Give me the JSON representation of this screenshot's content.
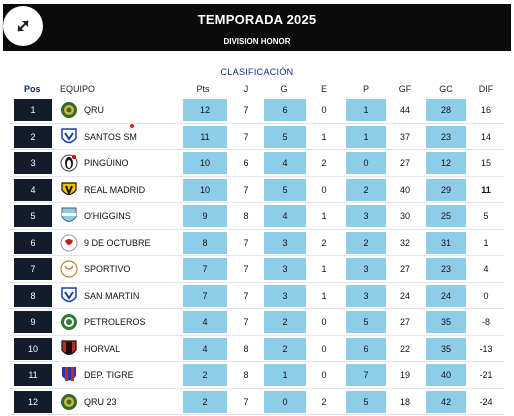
{
  "header": {
    "title": "TEMPORADA 2025",
    "subtitle": "DIVISION HONOR"
  },
  "section_title": "CLASIFICACIÓN",
  "columns": {
    "pos": "Pos",
    "team": "EQUIPO",
    "pts": "Pts",
    "j": "J",
    "g": "G",
    "e": "E",
    "p": "P",
    "gf": "GF",
    "gc": "GC",
    "dif": "DIF"
  },
  "colors": {
    "header_bg": "#0b0b0b",
    "pos_bg": "#121c2c",
    "highlight": "#8ecde8",
    "accent_text": "#1a2a8a"
  },
  "rows": [
    {
      "pos": "1",
      "team": "QRU",
      "logo": "green-gold-crest-icon",
      "pts": "12",
      "j": "7",
      "g": "6",
      "e": "0",
      "p": "1",
      "gf": "44",
      "gc": "28",
      "dif": "16",
      "dif_bold": false
    },
    {
      "pos": "2",
      "team": "SANTOS SM",
      "logo": "blue-white-shield-icon",
      "pts": "11",
      "j": "7",
      "g": "5",
      "e": "1",
      "p": "1",
      "gf": "37",
      "gc": "23",
      "dif": "14",
      "dif_bold": false
    },
    {
      "pos": "3",
      "team": "PINGÜINO",
      "logo": "penguin-crest-icon",
      "pts": "10",
      "j": "6",
      "g": "4",
      "e": "2",
      "p": "0",
      "gf": "27",
      "gc": "12",
      "dif": "15",
      "dif_bold": false
    },
    {
      "pos": "4",
      "team": "REAL MADRID",
      "logo": "yellow-black-crest-icon",
      "pts": "10",
      "j": "7",
      "g": "5",
      "e": "0",
      "p": "2",
      "gf": "40",
      "gc": "29",
      "dif": "11",
      "dif_bold": true
    },
    {
      "pos": "5",
      "team": "O'HIGGINS",
      "logo": "celeste-stripes-shield-icon",
      "pts": "9",
      "j": "8",
      "g": "4",
      "e": "1",
      "p": "3",
      "gf": "30",
      "gc": "25",
      "dif": "5",
      "dif_bold": false
    },
    {
      "pos": "6",
      "team": "9 DE OCTUBRE",
      "logo": "white-red-crest-icon",
      "pts": "8",
      "j": "7",
      "g": "3",
      "e": "2",
      "p": "2",
      "gf": "32",
      "gc": "31",
      "dif": "1",
      "dif_bold": false
    },
    {
      "pos": "7",
      "team": "SPORTIVO",
      "logo": "sportivo-crest-icon",
      "pts": "7",
      "j": "7",
      "g": "3",
      "e": "1",
      "p": "3",
      "gf": "27",
      "gc": "23",
      "dif": "4",
      "dif_bold": false
    },
    {
      "pos": "8",
      "team": "SAN MARTIN",
      "logo": "blue-white-shield-icon",
      "pts": "7",
      "j": "7",
      "g": "3",
      "e": "1",
      "p": "3",
      "gf": "24",
      "gc": "24",
      "dif": "0",
      "dif_bold": false
    },
    {
      "pos": "9",
      "team": "PETROLEROS",
      "logo": "green-round-crest-icon",
      "pts": "4",
      "j": "7",
      "g": "2",
      "e": "0",
      "p": "5",
      "gf": "27",
      "gc": "35",
      "dif": "-8",
      "dif_bold": false
    },
    {
      "pos": "10",
      "team": "HORVAL",
      "logo": "red-black-shield-icon",
      "pts": "4",
      "j": "8",
      "g": "2",
      "e": "0",
      "p": "6",
      "gf": "22",
      "gc": "35",
      "dif": "-13",
      "dif_bold": false
    },
    {
      "pos": "11",
      "team": "DEP. TIGRE",
      "logo": "red-blue-stripes-shield-icon",
      "pts": "2",
      "j": "8",
      "g": "1",
      "e": "0",
      "p": "7",
      "gf": "19",
      "gc": "40",
      "dif": "-21",
      "dif_bold": false
    },
    {
      "pos": "12",
      "team": "QRU 23",
      "logo": "green-gold-crest-icon",
      "pts": "2",
      "j": "7",
      "g": "0",
      "e": "2",
      "p": "5",
      "gf": "18",
      "gc": "42",
      "dif": "-24",
      "dif_bold": false
    }
  ]
}
